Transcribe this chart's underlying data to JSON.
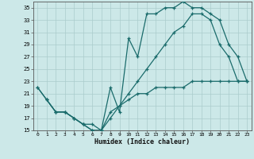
{
  "xlabel": "Humidex (Indice chaleur)",
  "bg_color": "#cce8e8",
  "grid_color": "#aacccc",
  "line_color": "#1a6b6b",
  "xlim": [
    -0.5,
    23.5
  ],
  "ylim": [
    15,
    36
  ],
  "xticks": [
    0,
    1,
    2,
    3,
    4,
    5,
    6,
    7,
    8,
    9,
    10,
    11,
    12,
    13,
    14,
    15,
    16,
    17,
    18,
    19,
    20,
    21,
    22,
    23
  ],
  "yticks": [
    15,
    17,
    19,
    21,
    23,
    25,
    27,
    29,
    31,
    33,
    35
  ],
  "line1_x": [
    0,
    1,
    2,
    3,
    4,
    5,
    6,
    7,
    8,
    9,
    10,
    11,
    12,
    13,
    14,
    15,
    16,
    17,
    18,
    19,
    20,
    21,
    22,
    23
  ],
  "line1_y": [
    22,
    20,
    18,
    18,
    17,
    16,
    15,
    15,
    22,
    18,
    30,
    27,
    34,
    34,
    35,
    35,
    36,
    35,
    35,
    34,
    33,
    29,
    27,
    23
  ],
  "line2_x": [
    0,
    1,
    2,
    3,
    4,
    5,
    6,
    7,
    8,
    9,
    10,
    11,
    12,
    13,
    14,
    15,
    16,
    17,
    18,
    19,
    20,
    21,
    22,
    23
  ],
  "line2_y": [
    22,
    20,
    18,
    18,
    17,
    16,
    15,
    15,
    18,
    19,
    21,
    23,
    25,
    27,
    29,
    31,
    32,
    34,
    34,
    33,
    29,
    27,
    23,
    23
  ],
  "line3_x": [
    1,
    2,
    3,
    4,
    5,
    6,
    7,
    8,
    9,
    10,
    11,
    12,
    13,
    14,
    15,
    16,
    17,
    18,
    19,
    20,
    21,
    22,
    23
  ],
  "line3_y": [
    20,
    18,
    18,
    17,
    16,
    16,
    15,
    17,
    19,
    20,
    21,
    21,
    22,
    22,
    22,
    22,
    23,
    23,
    23,
    23,
    23,
    23,
    23
  ]
}
